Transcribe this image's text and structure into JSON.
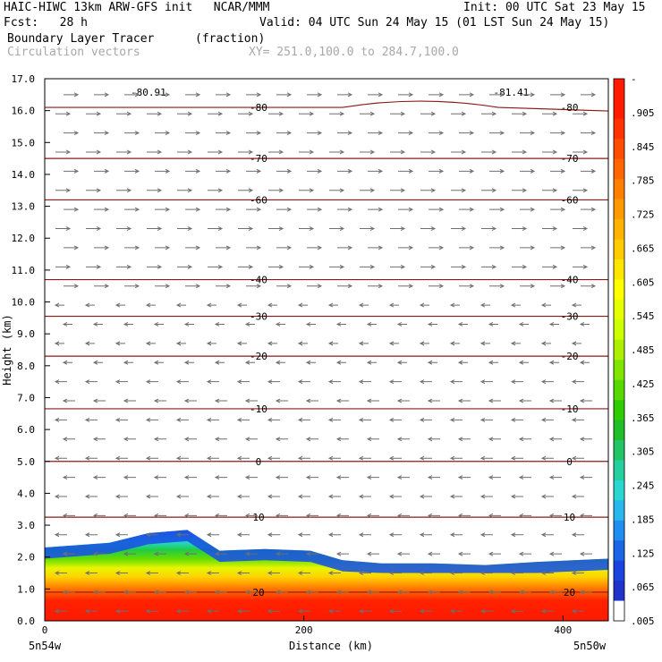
{
  "header": {
    "title_left": "HAIC-HIWC 13km ARW-GFS init   NCAR/MMM",
    "init": "Init: 00 UTC Sat 23 May 15",
    "fcst": "Fcst:   28 h",
    "valid": "Valid: 04 UTC Sun 24 May 15 (01 LST Sun 24 May 15)",
    "field1": "Boundary Layer Tracer",
    "field1_units": "(fraction)",
    "field2": "Circulation vectors",
    "xy_range": "XY= 251.0,100.0 to 284.7,100.0"
  },
  "chart_data": {
    "type": "heatmap",
    "xlabel": "Distance (km)",
    "ylabel": "Height (km)",
    "xlim": [
      0,
      435
    ],
    "ylim": [
      0,
      17
    ],
    "x_ticks": [
      0,
      200,
      400
    ],
    "x_corner_labels": [
      "5n54w",
      "5n50w"
    ],
    "y_ticks": [
      "0.0",
      "1.0",
      "2.0",
      "3.0",
      "4.0",
      "5.0",
      "6.0",
      "7.0",
      "8.0",
      "9.0",
      "10.0",
      "11.0",
      "12.0",
      "13.0",
      "14.0",
      "15.0",
      "16.0",
      "17.0"
    ],
    "colorbar": {
      "labels": [
        "-",
        ".905",
        ".845",
        ".785",
        ".725",
        ".665",
        ".605",
        ".545",
        ".485",
        ".425",
        ".365",
        ".305",
        ".245",
        ".185",
        ".125",
        ".065",
        ".005"
      ],
      "colors": [
        "#ff1a00",
        "#ff1a00",
        "#ff3300",
        "#ff4d00",
        "#ff6600",
        "#ff8000",
        "#ff9900",
        "#ffb300",
        "#ffcc00",
        "#ffe600",
        "#ffff00",
        "#e6ff00",
        "#ccff00",
        "#aaf000",
        "#80e600",
        "#55d900",
        "#2ecc00",
        "#1fbf2a",
        "#22c466",
        "#26cfa0",
        "#2ad6d0",
        "#28b8ee",
        "#1f8ef0",
        "#1a66e6",
        "#1a44dd",
        "#2233cc",
        "#ffffff"
      ]
    },
    "temperature_contours": [
      {
        "label": "-80",
        "height_km": 16.1,
        "extra_label": "-80.91",
        "extra_label_right": "-81.41",
        "bump": true
      },
      {
        "label": "-70",
        "height_km": 14.5
      },
      {
        "label": "-60",
        "height_km": 13.2
      },
      {
        "label": "-40",
        "height_km": 10.7
      },
      {
        "label": "-30",
        "height_km": 9.55
      },
      {
        "label": "-20",
        "height_km": 8.3
      },
      {
        "label": "-10",
        "height_km": 6.65
      },
      {
        "label": "0",
        "height_km": 5.0
      },
      {
        "label": "10",
        "height_km": 3.25
      },
      {
        "label": "20",
        "height_km": 0.9
      }
    ],
    "boundary_layer_top_km": [
      {
        "x": 0,
        "top": 2.3
      },
      {
        "x": 50,
        "top": 2.45
      },
      {
        "x": 80,
        "top": 2.75
      },
      {
        "x": 110,
        "top": 2.85
      },
      {
        "x": 135,
        "top": 2.2
      },
      {
        "x": 170,
        "top": 2.25
      },
      {
        "x": 205,
        "top": 2.2
      },
      {
        "x": 230,
        "top": 1.9
      },
      {
        "x": 260,
        "top": 1.8
      },
      {
        "x": 300,
        "top": 1.8
      },
      {
        "x": 340,
        "top": 1.75
      },
      {
        "x": 380,
        "top": 1.85
      },
      {
        "x": 435,
        "top": 1.95
      }
    ]
  }
}
